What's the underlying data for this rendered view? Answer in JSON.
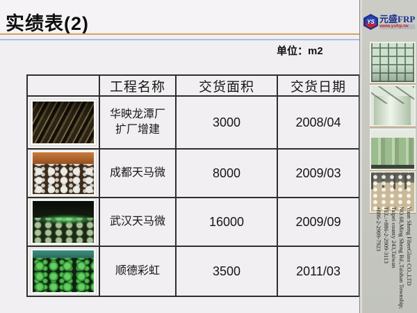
{
  "page": {
    "title": "实绩表(2)",
    "unit_label": "单位：m2"
  },
  "table": {
    "columns": {
      "image": "",
      "name": "工程名称",
      "area": "交货面积",
      "date": "交货日期"
    },
    "rows": [
      {
        "image": "longtan-plant-construction-photo",
        "name_line1": "华映龙潭厂",
        "name_line2": "扩厂增建",
        "area": "3000",
        "date": "2008/04"
      },
      {
        "image": "chengdu-tianma-site-photo",
        "name_line1": "成都天马微",
        "name_line2": "",
        "area": "8000",
        "date": "2009/03"
      },
      {
        "image": "wuhan-tianma-floor-photo",
        "name_line1": "武汉天马微",
        "name_line2": "",
        "area": "16000",
        "date": "2009/09"
      },
      {
        "image": "shunde-caihong-domes-photo",
        "name_line1": "顺德彩虹",
        "name_line2": "",
        "area": "3500",
        "date": "2011/03"
      }
    ]
  },
  "sidebar": {
    "logo": {
      "monogram": "YS",
      "brand": "元盛FRP",
      "website": "www.ysfrp.tw"
    },
    "contact": {
      "company": "Yuan Sheng FiberGlass CO.,LTD",
      "address1": "NO.68,Ming Sheng Rd.,Taishan Township;",
      "address2": "Taipei county 243,Taiwan",
      "tel1": "TEL:+886-2-2909-3113",
      "tel2": "+886-2-2909-7923"
    }
  },
  "colors": {
    "accent_tan": "#d8a25e",
    "accent_blue": "#a9bedd",
    "brand_blue": "#1c2f8f",
    "brand_red": "#c82314",
    "sidebar_bg": "#c7c8c2",
    "table_border": "#2e2e2e"
  }
}
